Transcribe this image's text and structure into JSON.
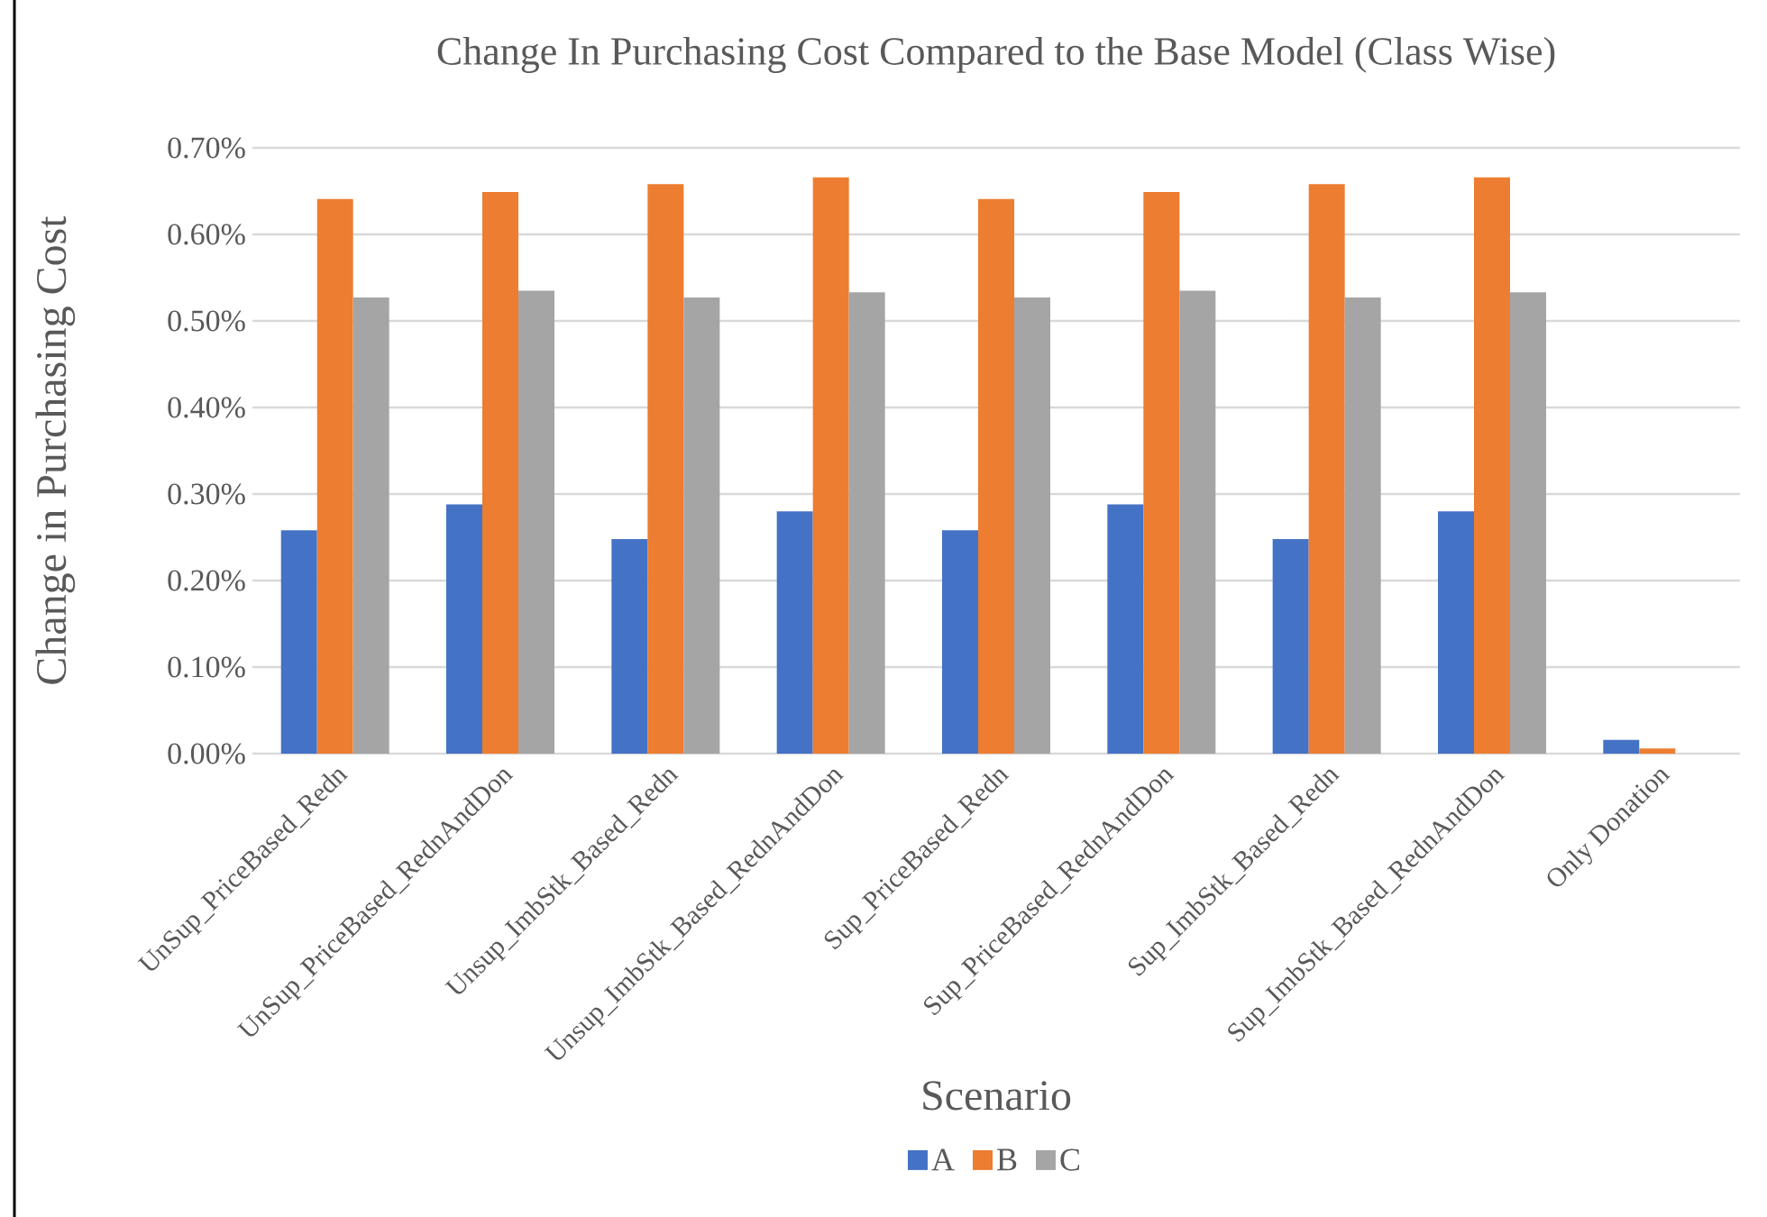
{
  "chart_data": {
    "type": "bar",
    "title": "Change In Purchasing Cost Compared to the Base Model (Class Wise)",
    "xlabel": "Scenario",
    "ylabel": "Change in Purchasing Cost",
    "categories": [
      "UnSup_PriceBased_Redn",
      "UnSup_PriceBased_RednAndDon",
      "Unsup_ImbStk_Based_Redn",
      "Unsup_ImbStk_Based_RednAndDon",
      "Sup_PriceBased_Redn",
      "Sup_PriceBased_RednAndDon",
      "Sup_ImbStk_Based_Redn",
      "Sup_ImbStk_Based_RednAndDon",
      "Only Donation"
    ],
    "series": [
      {
        "name": "A",
        "color": "#4472c4",
        "values": [
          0.258,
          0.288,
          0.248,
          0.28,
          0.258,
          0.288,
          0.248,
          0.28,
          0.016
        ]
      },
      {
        "name": "B",
        "color": "#ed7d31",
        "values": [
          0.641,
          0.649,
          0.658,
          0.666,
          0.641,
          0.649,
          0.658,
          0.666,
          0.006
        ]
      },
      {
        "name": "C",
        "color": "#a5a5a5",
        "values": [
          0.527,
          0.535,
          0.527,
          0.533,
          0.527,
          0.535,
          0.527,
          0.533,
          null
        ]
      }
    ],
    "ylim": [
      0,
      0.7
    ],
    "yticks": [
      {
        "value": 0,
        "label": "0.00%"
      },
      {
        "value": 0.1,
        "label": "0.10%"
      },
      {
        "value": 0.2,
        "label": "0.20%"
      },
      {
        "value": 0.3,
        "label": "0.30%"
      },
      {
        "value": 0.4,
        "label": "0.40%"
      },
      {
        "value": 0.5,
        "label": "0.50%"
      },
      {
        "value": 0.6,
        "label": "0.60%"
      },
      {
        "value": 0.7,
        "label": "0.70%"
      }
    ],
    "grid": "y",
    "legend": "bottom"
  }
}
